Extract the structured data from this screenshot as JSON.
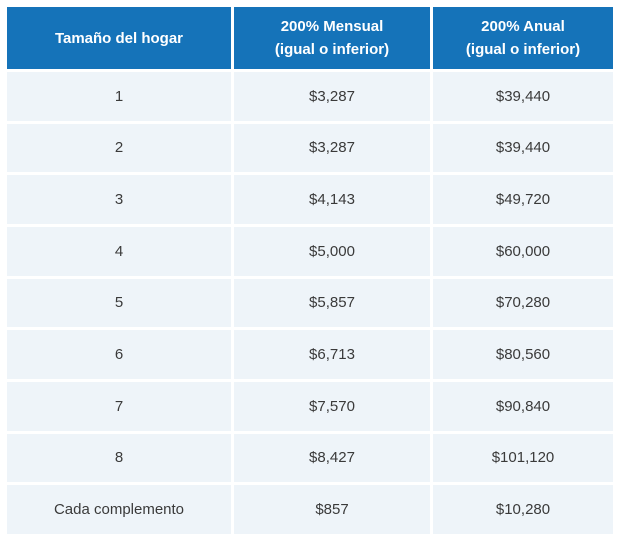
{
  "chart_data": {
    "type": "table",
    "title": "",
    "columns": [
      "Tamaño del hogar",
      "200% Mensual (igual o inferior)",
      "200% Anual (igual o inferior)"
    ],
    "header": [
      {
        "title": "Tamaño del hogar",
        "subtitle": ""
      },
      {
        "title": "200% Mensual",
        "subtitle": "(igual o inferior)"
      },
      {
        "title": "200% Anual",
        "subtitle": "(igual o inferior)"
      }
    ],
    "rows": [
      [
        "1",
        "$3,287",
        "$39,440"
      ],
      [
        "2",
        "$3,287",
        "$39,440"
      ],
      [
        "3",
        "$4,143",
        "$49,720"
      ],
      [
        "4",
        "$5,000",
        "$60,000"
      ],
      [
        "5",
        "$5,857",
        "$70,280"
      ],
      [
        "6",
        "$6,713",
        "$80,560"
      ],
      [
        "7",
        "$7,570",
        "$90,840"
      ],
      [
        "8",
        "$8,427",
        "$101,120"
      ],
      [
        "Cada complemento",
        "$857",
        "$10,280"
      ]
    ],
    "layout_hints": {
      "grid": "on",
      "header_position": "top",
      "cell_alignment": "center"
    }
  },
  "colors": {
    "header_bg": "#1573b9",
    "header_text": "#ffffff",
    "row_bg": "#eef4f9",
    "body_text": "#3a3a3a",
    "separator": "#ffffff"
  }
}
